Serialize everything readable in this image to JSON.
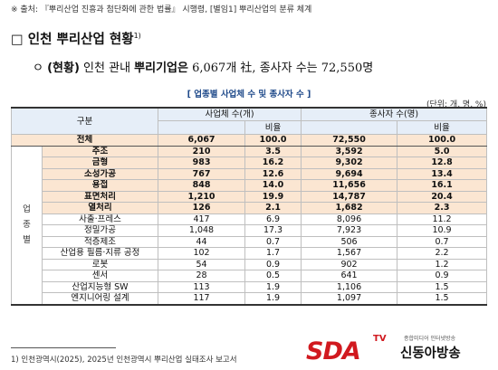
{
  "source_note": "※ 출처: 『뿌리산업 진흥과 첨단화에 관한 법률』 시행령, [별임1] 뿌리산업의 분류 체계",
  "section": {
    "box": "□",
    "title": "인천 뿌리산업 현황",
    "sup": "1)"
  },
  "summary": {
    "bullet": "ㅇ",
    "lead": "(현황)",
    "text": " 인천 관내 ",
    "bold_term": "뿌리기업은",
    "rest": " 6,067개 社, 종사자 수는 72,550명"
  },
  "table_caption": "[ 업종별 사업체 수 및 종사자 수 ]",
  "unit_note": "(단위: 개, 명, %)",
  "table": {
    "header": {
      "col_group": "구분",
      "companies": "사업체 수(개)",
      "ratio1": "비율",
      "employees": "종사자 수(명)",
      "ratio2": "비율"
    },
    "category_label": "업\n종\n별",
    "total": {
      "name": "전체",
      "companies": "6,067",
      "ratio1": "100.0",
      "employees": "72,550",
      "ratio2": "100.0"
    },
    "rows": [
      {
        "name": "주조",
        "companies": "210",
        "ratio1": "3.5",
        "employees": "3,592",
        "ratio2": "5.0",
        "highlight": true
      },
      {
        "name": "금형",
        "companies": "983",
        "ratio1": "16.2",
        "employees": "9,302",
        "ratio2": "12.8",
        "highlight": true
      },
      {
        "name": "소성가공",
        "companies": "767",
        "ratio1": "12.6",
        "employees": "9,694",
        "ratio2": "13.4",
        "highlight": true
      },
      {
        "name": "용접",
        "companies": "848",
        "ratio1": "14.0",
        "employees": "11,656",
        "ratio2": "16.1",
        "highlight": true
      },
      {
        "name": "표면처리",
        "companies": "1,210",
        "ratio1": "19.9",
        "employees": "14,787",
        "ratio2": "20.4",
        "highlight": true
      },
      {
        "name": "열처리",
        "companies": "126",
        "ratio1": "2.1",
        "employees": "1,682",
        "ratio2": "2.3",
        "highlight": true
      },
      {
        "name": "사출·프레스",
        "companies": "417",
        "ratio1": "6.9",
        "employees": "8,096",
        "ratio2": "11.2",
        "highlight": false
      },
      {
        "name": "정밀가공",
        "companies": "1,048",
        "ratio1": "17.3",
        "employees": "7,923",
        "ratio2": "10.9",
        "highlight": false
      },
      {
        "name": "적층제조",
        "companies": "44",
        "ratio1": "0.7",
        "employees": "506",
        "ratio2": "0.7",
        "highlight": false
      },
      {
        "name": "산업용 필름·지류 공정",
        "companies": "102",
        "ratio1": "1.7",
        "employees": "1,567",
        "ratio2": "2.2",
        "highlight": false
      },
      {
        "name": "로봇",
        "companies": "54",
        "ratio1": "0.9",
        "employees": "902",
        "ratio2": "1.2",
        "highlight": false
      },
      {
        "name": "센서",
        "companies": "28",
        "ratio1": "0.5",
        "employees": "641",
        "ratio2": "0.9",
        "highlight": false
      },
      {
        "name": "산업지능형 SW",
        "companies": "113",
        "ratio1": "1.9",
        "employees": "1,106",
        "ratio2": "1.5",
        "highlight": false
      },
      {
        "name": "엔지니어링 설계",
        "companies": "117",
        "ratio1": "1.9",
        "employees": "1,097",
        "ratio2": "1.5",
        "highlight": false
      }
    ]
  },
  "footnote": "1) 인천광역시(2025), 2025년 인천광역시 뿌리산업 실태조사 보고서",
  "logo": {
    "sda": "SDA",
    "tv": "TV",
    "small": "종합미디어 인터넷방송",
    "name": "신동아방송"
  },
  "colors": {
    "highlight": "#fbe6d2",
    "header": "#e6eef8",
    "caption": "#1f4a8a",
    "brand": "#d1191f"
  }
}
